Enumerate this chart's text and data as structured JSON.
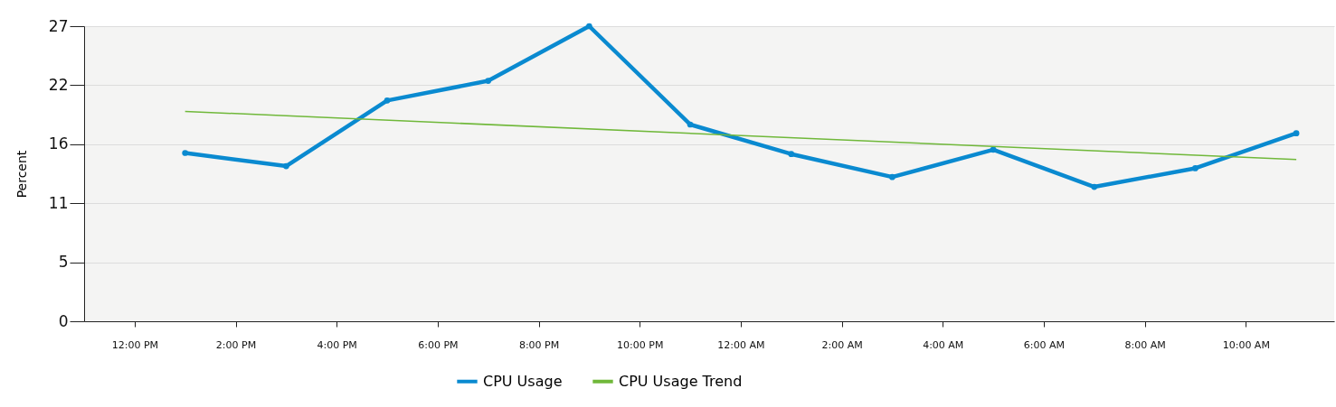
{
  "chart_data": {
    "type": "line",
    "ylabel": "Percent",
    "x": [
      "--01-01T13:00",
      "--01-01T15:00",
      "--01-01T17:00",
      "--01-01T19:00",
      "--01-01T21:00",
      "--01-01T23:00",
      "--01-02T01:00",
      "--01-02T03:00",
      "--01-02T05:00",
      "--01-02T07:00",
      "--01-02T09:00",
      "--01-02T11:00"
    ],
    "series": [
      {
        "name": "CPU Usage",
        "color": "#0a8ad0",
        "marker": "circle",
        "values": [
          15.4,
          14.2,
          20.2,
          22.0,
          27.0,
          18.0,
          15.3,
          13.2,
          15.7,
          12.3,
          14.0,
          17.2
        ]
      },
      {
        "name": "CPU Usage Trend",
        "color": "#70b83a",
        "type": "line",
        "marker": "none",
        "x": [
          "--01-01T13:00",
          "--01-02T11:00"
        ],
        "values": [
          19.2,
          14.8
        ]
      }
    ],
    "xlim": [
      "--01-01T11:00",
      "--01-02T11:45"
    ],
    "xticks": [
      {
        "value": "--01-01T12:00",
        "label": "12:00 PM"
      },
      {
        "value": "--01-01T14:00",
        "label": "2:00 PM"
      },
      {
        "value": "--01-01T16:00",
        "label": "4:00 PM"
      },
      {
        "value": "--01-01T18:00",
        "label": "6:00 PM"
      },
      {
        "value": "--01-01T20:00",
        "label": "8:00 PM"
      },
      {
        "value": "--01-01T22:00",
        "label": "10:00 PM"
      },
      {
        "value": "--01-02T00:00",
        "label": "12:00 AM"
      },
      {
        "value": "--01-02T02:00",
        "label": "2:00 AM"
      },
      {
        "value": "--01-02T04:00",
        "label": "4:00 AM"
      },
      {
        "value": "--01-02T06:00",
        "label": "6:00 AM"
      },
      {
        "value": "--01-02T08:00",
        "label": "8:00 AM"
      },
      {
        "value": "--01-02T10:00",
        "label": "10:00 AM"
      }
    ],
    "ylim": [
      0,
      27
    ],
    "yticks": [
      0,
      {
        "value": 5.4,
        "label": "5"
      },
      {
        "value": 10.8,
        "label": "11"
      },
      {
        "value": 16.2,
        "label": "16"
      },
      {
        "value": 21.6,
        "label": "22"
      },
      27
    ],
    "grid": "y",
    "legend": "bottom",
    "line_style": "solid"
  }
}
